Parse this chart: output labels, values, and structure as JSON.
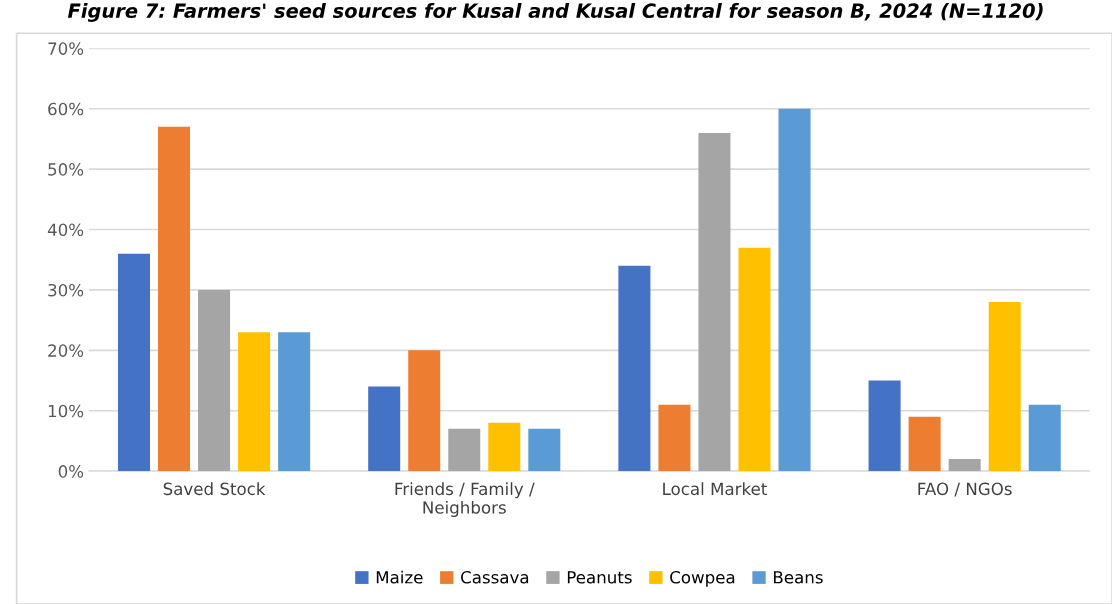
{
  "chart_data": {
    "type": "bar",
    "title": "Figure 7: Farmers' seed sources for Kusal and Kusal Central for season B, 2024 (N=1120)",
    "categories": [
      "Saved Stock",
      "Friends / Family /\nNeighbors",
      "Local Market",
      "FAO / NGOs"
    ],
    "series": [
      {
        "name": "Maize",
        "color": "#4472c4",
        "values": [
          36,
          14,
          34,
          15
        ]
      },
      {
        "name": "Cassava",
        "color": "#ed7d31",
        "values": [
          57,
          20,
          11,
          9
        ]
      },
      {
        "name": "Peanuts",
        "color": "#a5a5a5",
        "values": [
          30,
          7,
          56,
          2
        ]
      },
      {
        "name": "Cowpea",
        "color": "#ffc000",
        "values": [
          23,
          8,
          37,
          28
        ]
      },
      {
        "name": "Beans",
        "color": "#5b9bd5",
        "values": [
          23,
          7,
          60,
          11
        ]
      }
    ],
    "ylim": [
      0,
      70
    ],
    "yticks": [
      {
        "value": 0,
        "label": "0%"
      },
      {
        "value": 10,
        "label": "10%"
      },
      {
        "value": 20,
        "label": "20%"
      },
      {
        "value": 30,
        "label": "30%"
      },
      {
        "value": 40,
        "label": "40%"
      },
      {
        "value": 50,
        "label": "50%"
      },
      {
        "value": 60,
        "label": "60%"
      },
      {
        "value": 70,
        "label": "70%"
      }
    ],
    "grid": "y",
    "legend": "bottom"
  }
}
